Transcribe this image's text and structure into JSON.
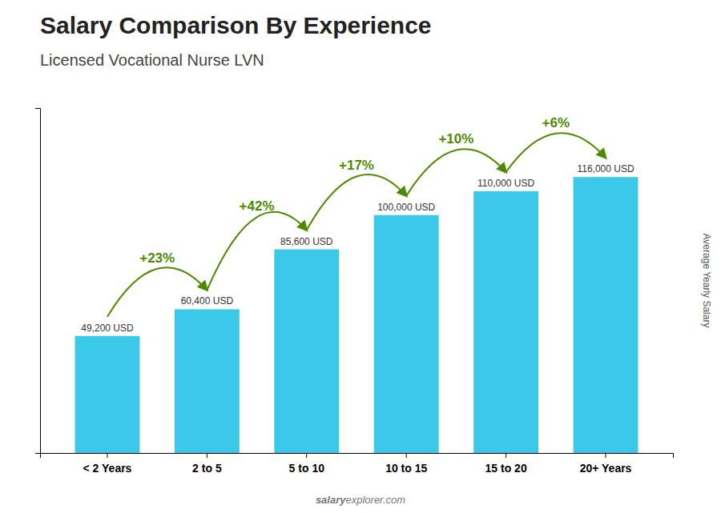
{
  "chart_data": {
    "type": "bar",
    "title": "Salary Comparison By Experience",
    "subtitle": "Licensed Vocational Nurse LVN",
    "ylabel": "Average Yearly Salary",
    "categories": [
      "< 2 Years",
      "2 to 5",
      "5 to 10",
      "10 to 15",
      "15 to 20",
      "20+ Years"
    ],
    "values": [
      49200,
      60400,
      85600,
      100000,
      110000,
      116000
    ],
    "value_labels": [
      "49,200 USD",
      "60,400 USD",
      "85,600 USD",
      "100,000 USD",
      "110,000 USD",
      "116,000 USD"
    ],
    "data_labels": true,
    "color": "#3cc8e8",
    "annotations": [
      "+23%",
      "+42%",
      "+17%",
      "+10%",
      "+6%"
    ],
    "watermark": [
      "salary",
      "explorer.com"
    ],
    "ylim": [
      0,
      145000
    ],
    "yticks": [],
    "tick_labels": "x",
    "grid": false
  }
}
